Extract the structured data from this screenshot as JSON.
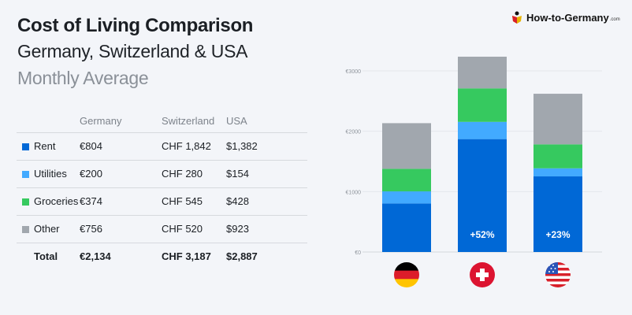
{
  "header": {
    "title": "Cost of Living Comparison",
    "subtitle": "Germany, Switzerland & USA",
    "subtitle2": "Monthly Average"
  },
  "logo": {
    "text": "How-to-Germany",
    "suffix": ".com"
  },
  "table": {
    "columns": [
      "",
      "Germany",
      "Switzerland",
      "USA"
    ],
    "rows": [
      {
        "label": "Rent",
        "color": "#0068d6",
        "values": [
          "€804",
          "CHF 1,842",
          "$1,382"
        ]
      },
      {
        "label": "Utilities",
        "color": "#42aaff",
        "values": [
          "€200",
          "CHF 280",
          "$154"
        ]
      },
      {
        "label": "Groceries",
        "color": "#36c95f",
        "values": [
          "€374",
          "CHF 545",
          "$428"
        ]
      },
      {
        "label": "Other",
        "color": "#a1a7ae",
        "values": [
          "€756",
          "CHF 520",
          "$923"
        ]
      },
      {
        "label": "Total",
        "color": "",
        "values": [
          "€2,134",
          "CHF 3,187",
          "$2,887"
        ]
      }
    ]
  },
  "chart_data": {
    "type": "bar",
    "stacked": true,
    "categories": [
      "Germany",
      "Switzerland",
      "USA"
    ],
    "series": [
      {
        "name": "Rent",
        "color": "#0068d6",
        "values": [
          804,
          1870,
          1252
        ]
      },
      {
        "name": "Utilities",
        "color": "#42aaff",
        "values": [
          200,
          285,
          134
        ]
      },
      {
        "name": "Groceries",
        "color": "#36c95f",
        "values": [
          374,
          555,
          397
        ]
      },
      {
        "name": "Other",
        "color": "#a1a7ae",
        "values": [
          756,
          525,
          838
        ]
      }
    ],
    "yticks": [
      0,
      1000,
      2000,
      3000
    ],
    "ytick_labels": [
      "€0",
      "€1000",
      "€2000",
      "€3000"
    ],
    "ylim": [
      0,
      3300
    ],
    "grid": true,
    "annotations": [
      "",
      "+52%",
      "+23%"
    ],
    "x_axis_icons": [
      "germany-flag",
      "switzerland-flag",
      "usa-flag"
    ]
  }
}
